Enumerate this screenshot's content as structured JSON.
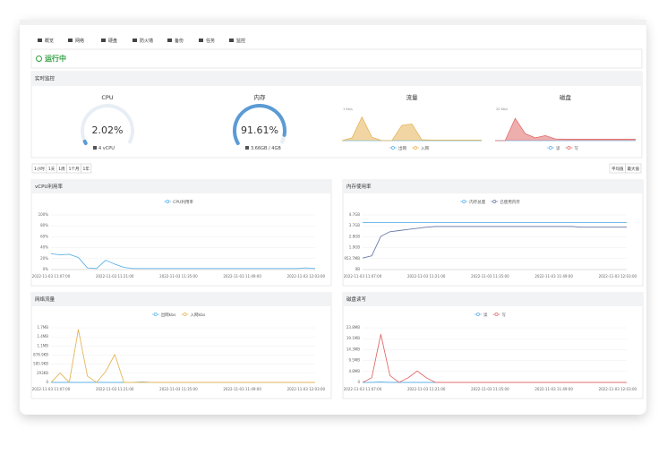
{
  "tabs": [
    "概览",
    "网络",
    "硬盘",
    "防火墙",
    "备份",
    "任务",
    "监控"
  ],
  "status": "运行中",
  "section_title": "实时监控",
  "gauges": [
    {
      "title": "CPU",
      "value": 2.02,
      "value_label": "2.02%",
      "sub": "4 vCPU",
      "color": "#5b9bd5"
    },
    {
      "title": "内存",
      "value": 91.61,
      "value_label": "91.61%",
      "sub": "3.66GB / 4GB",
      "color": "#5b9bd5"
    }
  ],
  "range_buttons": [
    "1小时",
    "1天",
    "1周",
    "1个月",
    "1年"
  ],
  "agg_buttons": [
    "平均值",
    "最大值"
  ],
  "chart_data": [
    {
      "type": "area",
      "title": "流量",
      "label": "1 Kb/s",
      "ylim": [
        0,
        100
      ],
      "series": [
        {
          "name": "出网",
          "color": "#5fb3e8",
          "values": [
            0,
            0,
            0,
            0,
            0,
            0,
            0,
            0,
            0,
            0,
            0,
            0,
            0,
            0,
            0
          ]
        },
        {
          "name": "入网",
          "color": "#e5b55a",
          "values": [
            0,
            10,
            85,
            12,
            0,
            0,
            55,
            60,
            3,
            2,
            2,
            2,
            2,
            2,
            2
          ]
        }
      ]
    },
    {
      "type": "area",
      "title": "磁盘",
      "label": "20 Kb/s",
      "ylim": [
        0,
        100
      ],
      "series": [
        {
          "name": "读",
          "color": "#5fb3e8",
          "values": [
            0,
            0,
            0,
            0,
            0,
            0,
            0,
            0,
            0,
            0,
            0,
            0,
            0,
            0,
            0
          ]
        },
        {
          "name": "写",
          "color": "#e26b6b",
          "values": [
            0,
            0,
            80,
            25,
            10,
            18,
            6,
            5,
            5,
            5,
            5,
            5,
            5,
            5,
            5
          ]
        }
      ]
    },
    {
      "type": "line",
      "title": "vCPU利用率",
      "grid": true,
      "ylim": [
        0,
        100
      ],
      "yticks": [
        {
          "value": 0,
          "label": "0%"
        },
        {
          "value": 20,
          "label": "20%"
        },
        {
          "value": 40,
          "label": "40%"
        },
        {
          "value": 60,
          "label": "60%"
        },
        {
          "value": 80,
          "label": "80%"
        },
        {
          "value": 100,
          "label": "100%"
        }
      ],
      "categories": [
        "2022-11-03 11:07:00",
        null,
        null,
        null,
        null,
        null,
        null,
        "2022-11-03 11:21:00",
        null,
        null,
        null,
        null,
        null,
        null,
        "2022-11-03 11:35:00",
        null,
        null,
        null,
        null,
        null,
        null,
        "2022-11-03 11:49:00",
        null,
        null,
        null,
        null,
        null,
        null,
        "2022-11-03 12:03:00",
        null
      ],
      "series": [
        {
          "name": "CPU利用率",
          "color": "#5fb3e8",
          "values": [
            29,
            27,
            28,
            22,
            3,
            2,
            17,
            10,
            4,
            2,
            2,
            2,
            2,
            2,
            2,
            2,
            2,
            2,
            2,
            2,
            2,
            2,
            2,
            2,
            2,
            2,
            2,
            2,
            3,
            2
          ]
        }
      ]
    },
    {
      "type": "line",
      "title": "内存使用率",
      "grid": true,
      "ylim": [
        0,
        4768.4
      ],
      "yticks": [
        {
          "value": 0,
          "label": "0B"
        },
        {
          "value": 953.7,
          "label": "953.7MB"
        },
        {
          "value": 1907.3,
          "label": "1.9GB"
        },
        {
          "value": 2861,
          "label": "2.8GB"
        },
        {
          "value": 3814.7,
          "label": "3.7GB"
        },
        {
          "value": 4768.4,
          "label": "4.7GB"
        }
      ],
      "categories": [
        "2022-11-03 11:07:00",
        null,
        null,
        null,
        null,
        null,
        null,
        "2022-11-03 11:21:00",
        null,
        null,
        null,
        null,
        null,
        null,
        "2022-11-03 11:35:00",
        null,
        null,
        null,
        null,
        null,
        null,
        "2022-11-03 11:49:00",
        null,
        null,
        null,
        null,
        null,
        null,
        "2022-11-03 12:03:00",
        null
      ],
      "series": [
        {
          "name": "内存总量",
          "color": "#5fb3e8",
          "values": [
            4096,
            4096,
            4096,
            4096,
            4096,
            4096,
            4096,
            4096,
            4096,
            4096,
            4096,
            4096,
            4096,
            4096,
            4096,
            4096,
            4096,
            4096,
            4096,
            4096,
            4096,
            4096,
            4096,
            4096,
            4096,
            4096,
            4096,
            4096,
            4096,
            4096
          ]
        },
        {
          "name": "已使用内存",
          "color": "#6b7aa8",
          "values": [
            1000,
            1200,
            2900,
            3300,
            3400,
            3500,
            3600,
            3700,
            3760,
            3760,
            3760,
            3760,
            3760,
            3760,
            3760,
            3760,
            3760,
            3760,
            3760,
            3760,
            3760,
            3760,
            3760,
            3760,
            3700,
            3700,
            3700,
            3700,
            3700,
            3700
          ]
        }
      ]
    },
    {
      "type": "line",
      "title": "网络流量",
      "grid": true,
      "ylim": [
        0,
        1757.8
      ],
      "yticks": [
        0,
        {
          "value": 293,
          "label": "293KB"
        },
        {
          "value": 585.9,
          "label": "585.9KB"
        },
        {
          "value": 878.9,
          "label": "878.9KB"
        },
        {
          "value": 1171.9,
          "label": "1.1MB"
        },
        {
          "value": 1464.8,
          "label": "1.4MB"
        },
        {
          "value": 1757.8,
          "label": "1.7MB"
        }
      ],
      "categories": [
        "2022-11-03 11:07:00",
        null,
        null,
        null,
        null,
        null,
        null,
        "2022-11-03 11:21:00",
        null,
        null,
        null,
        null,
        null,
        null,
        "2022-11-03 11:35:00",
        null,
        null,
        null,
        null,
        null,
        null,
        "2022-11-03 11:49:00",
        null,
        null,
        null,
        null,
        null,
        null,
        "2022-11-03 12:03:00",
        null
      ],
      "series": [
        {
          "name": "出网kbs",
          "color": "#5fb3e8",
          "values": [
            0,
            0,
            0,
            0,
            0,
            0,
            0,
            0,
            0,
            0,
            15,
            0,
            0,
            0,
            0,
            0,
            0,
            0,
            0,
            0,
            0,
            0,
            0,
            0,
            0,
            0,
            0,
            0,
            0,
            0
          ]
        },
        {
          "name": "入网kbs",
          "color": "#e5b55a",
          "values": [
            0,
            300,
            0,
            1700,
            200,
            0,
            350,
            900,
            0,
            0,
            0,
            0,
            0,
            0,
            0,
            0,
            0,
            0,
            0,
            0,
            0,
            0,
            0,
            0,
            0,
            0,
            0,
            0,
            0,
            0
          ]
        }
      ]
    },
    {
      "type": "line",
      "title": "磁盘读写",
      "grid": true,
      "ylim": [
        0,
        23.84
      ],
      "yticks": [
        0,
        {
          "value": 4.77,
          "label": "4.8MB"
        },
        {
          "value": 9.54,
          "label": "9.5MB"
        },
        {
          "value": 14.3,
          "label": "14.3MB"
        },
        {
          "value": 19.07,
          "label": "19.1MB"
        },
        {
          "value": 23.84,
          "label": "23.8MB"
        }
      ],
      "categories": [
        "2022-11-03 11:07:00",
        null,
        null,
        null,
        null,
        null,
        null,
        "2022-11-03 11:21:00",
        null,
        null,
        null,
        null,
        null,
        null,
        "2022-11-03 11:35:00",
        null,
        null,
        null,
        null,
        null,
        null,
        "2022-11-03 11:49:00",
        null,
        null,
        null,
        null,
        null,
        null,
        "2022-11-03 12:03:00",
        null
      ],
      "series": [
        {
          "name": "读",
          "color": "#5fb3e8",
          "values": [
            0,
            0,
            0.2,
            0,
            0,
            0,
            0,
            0,
            0,
            0,
            0,
            0,
            0,
            0,
            0,
            0,
            0,
            0,
            0,
            0,
            0,
            0,
            0,
            0,
            0,
            0,
            0,
            0,
            0,
            0
          ]
        },
        {
          "name": "写",
          "color": "#e26b6b",
          "values": [
            0,
            2,
            21,
            3,
            0,
            2,
            5,
            2,
            0,
            0,
            0,
            0,
            0,
            0,
            0,
            0,
            0,
            0,
            0,
            0,
            0,
            0,
            0,
            0,
            0,
            0,
            0,
            0,
            0,
            0
          ]
        }
      ]
    }
  ]
}
